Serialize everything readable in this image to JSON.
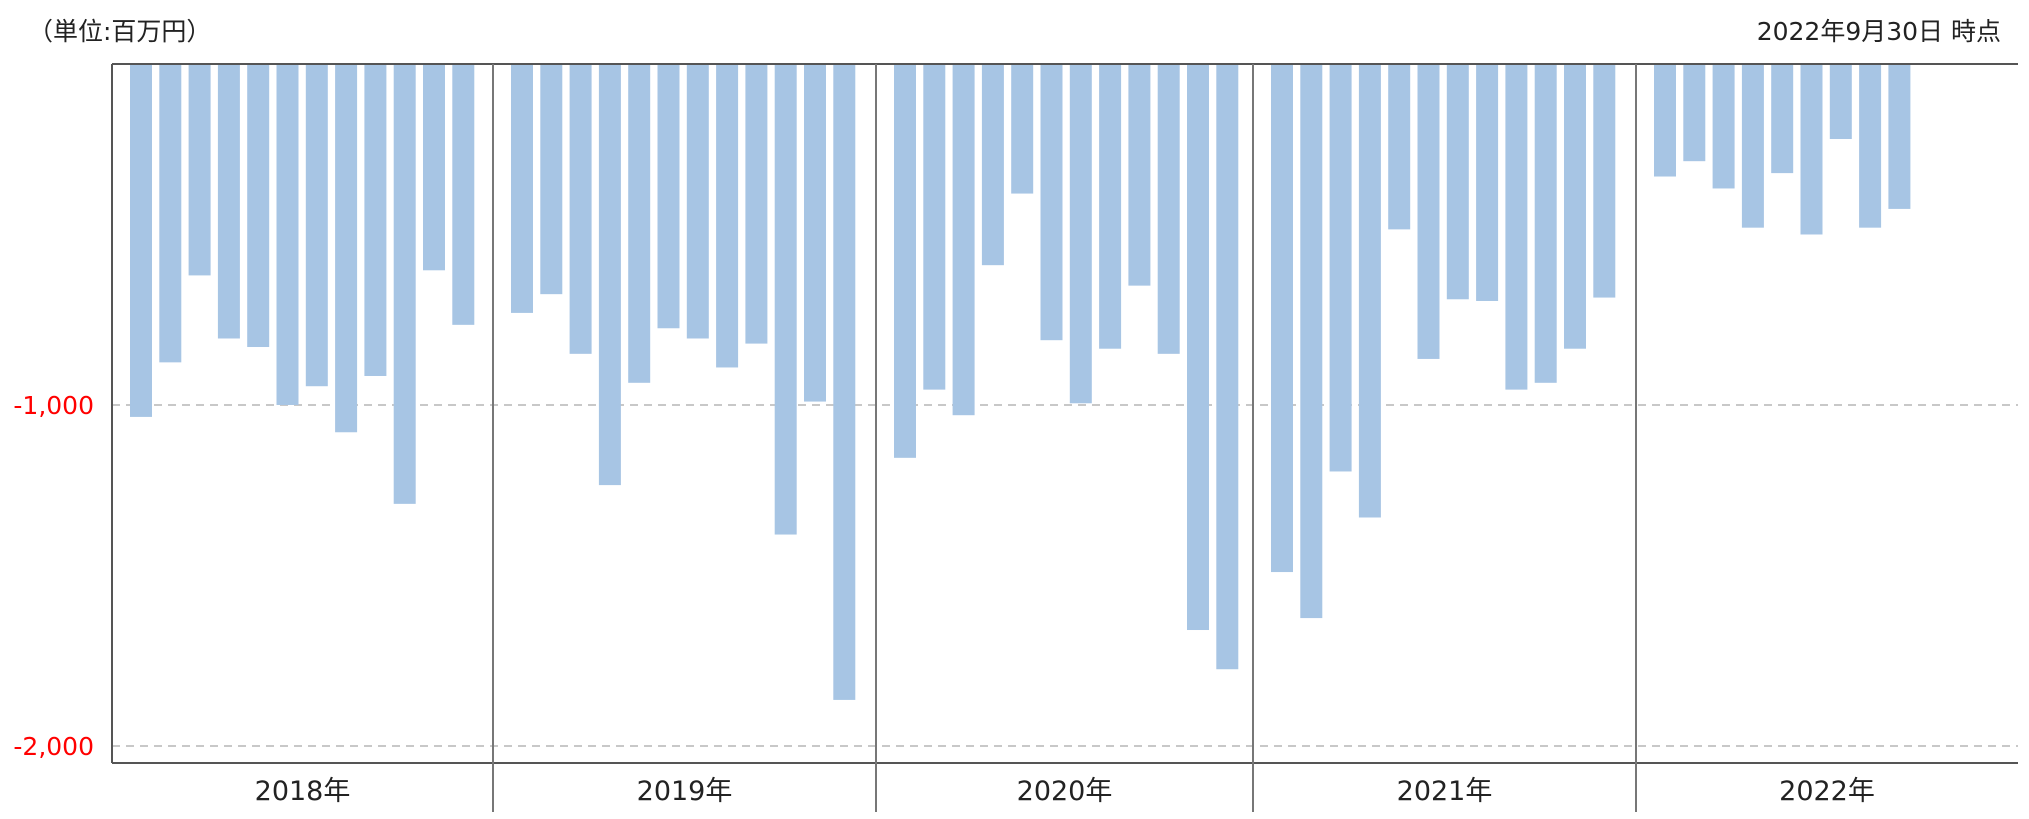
{
  "header": {
    "unit": "（単位:百万円）",
    "as_of": "2022年9月30日 時点"
  },
  "colors": {
    "bar": "#a7c5e4",
    "negative_tick": "#ff0000",
    "axis": "#555555",
    "grid": "#c8c8c8"
  },
  "chart_data": {
    "type": "bar",
    "ylim": [
      -2050,
      0
    ],
    "grid": true,
    "y_ticks": [
      {
        "value": -1000,
        "label": "-1,000"
      },
      {
        "value": -2000,
        "label": "-2,000"
      }
    ],
    "groups": [
      {
        "label": "2018年",
        "values": [
          -1035,
          -875,
          -620,
          -805,
          -830,
          -1000,
          -945,
          -1080,
          -915,
          -1290,
          -605,
          -765
        ]
      },
      {
        "label": "2019年",
        "values": [
          -730,
          -675,
          -850,
          -1235,
          -935,
          -775,
          -805,
          -890,
          -820,
          -1380,
          -990,
          -1865
        ]
      },
      {
        "label": "2020年",
        "values": [
          -1155,
          -955,
          -1030,
          -590,
          -380,
          -810,
          -995,
          -835,
          -650,
          -850,
          -1660,
          -1775
        ]
      },
      {
        "label": "2021年",
        "values": [
          -1490,
          -1625,
          -1195,
          -1330,
          -485,
          -865,
          -690,
          -695,
          -955,
          -935,
          -835,
          -685
        ]
      },
      {
        "label": "2022年",
        "values": [
          -330,
          -285,
          -365,
          -480,
          -320,
          -500,
          -220,
          -480,
          -425
        ]
      }
    ]
  }
}
